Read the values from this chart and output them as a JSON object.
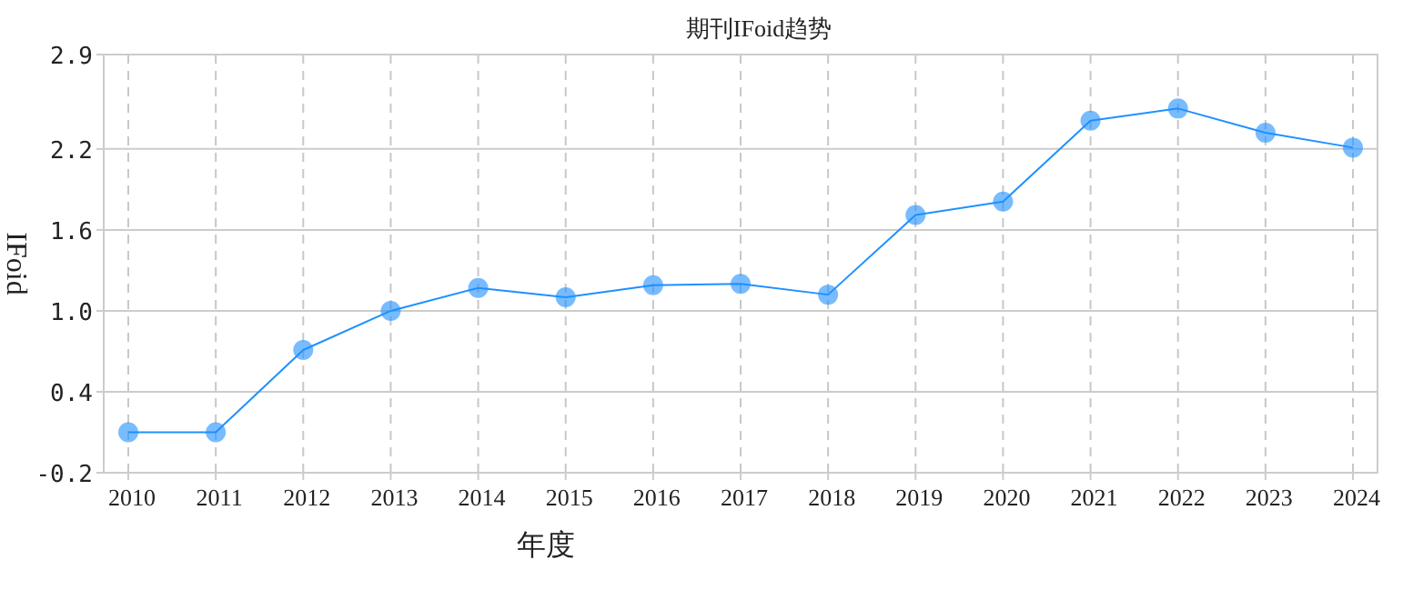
{
  "chart_data": {
    "type": "line",
    "title": "期刊IFoid趋势",
    "xlabel": "年度",
    "ylabel": "IFoid",
    "categories": [
      "2010",
      "2011",
      "2012",
      "2013",
      "2014",
      "2015",
      "2016",
      "2017",
      "2018",
      "2019",
      "2020",
      "2021",
      "2022",
      "2023",
      "2024"
    ],
    "series": [
      {
        "color": "#1e90ff",
        "values": [
          0.1,
          0.1,
          0.71,
          1.0,
          1.17,
          1.1,
          1.19,
          1.2,
          1.12,
          1.71,
          1.81,
          2.41,
          2.5,
          2.32,
          2.21
        ]
      }
    ],
    "ylim": [
      -0.2,
      2.9
    ],
    "yticks": [
      -0.2,
      0.4,
      {
        "value": 1.0,
        "label": "1.0"
      },
      1.6,
      2.2,
      2.9
    ],
    "grid": true,
    "marker": "circle",
    "line_style": "solid"
  }
}
